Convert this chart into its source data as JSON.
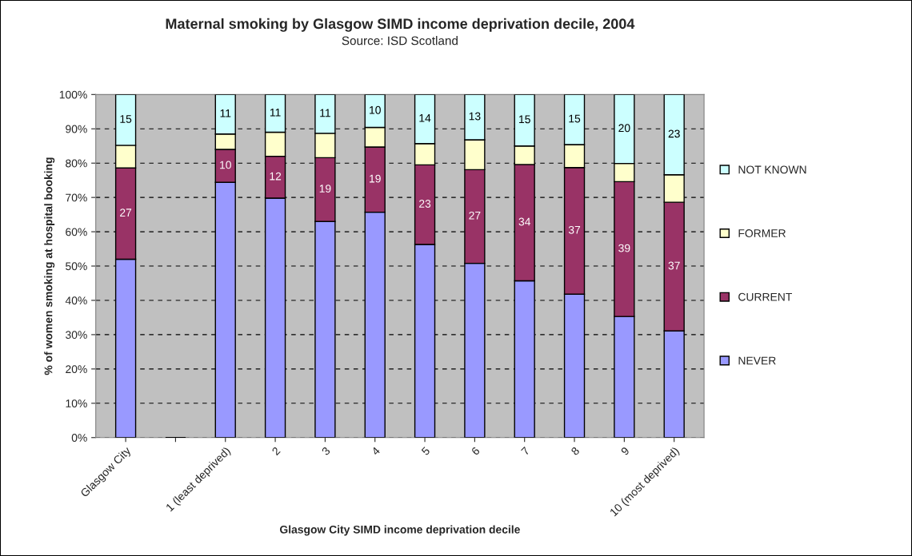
{
  "chart_data": {
    "type": "bar",
    "stacked": true,
    "title": "Maternal smoking by Glasgow SIMD income deprivation decile, 2004",
    "subtitle": "Source: ISD Scotland",
    "xlabel": "Glasgow City SIMD income deprivation decile",
    "ylabel": "% of women smoking at hospital booking",
    "categories": [
      "Glasgow City",
      null,
      "1 (least deprived)",
      "2",
      "3",
      "4",
      "5",
      "6",
      "7",
      "8",
      "9",
      "10 (most deprived)"
    ],
    "series": [
      {
        "name": "NEVER",
        "color": "#9999ff",
        "values": [
          52.0,
          null,
          74.4,
          69.8,
          63.0,
          65.7,
          56.3,
          50.8,
          45.7,
          41.8,
          35.3,
          31.1
        ]
      },
      {
        "name": "CURRENT",
        "color": "#993366",
        "values": [
          26.6,
          null,
          9.6,
          12.2,
          18.6,
          19.0,
          23.2,
          27.3,
          33.9,
          36.9,
          39.3,
          37.5
        ],
        "value_labels": [
          "27",
          null,
          "10",
          "12",
          "19",
          "19",
          "23",
          "27",
          "34",
          "37",
          "39",
          "37"
        ]
      },
      {
        "name": "FORMER",
        "color": "#ffffcc",
        "values": [
          6.6,
          null,
          4.5,
          7.0,
          7.1,
          5.7,
          6.2,
          8.7,
          5.4,
          6.7,
          5.3,
          8.0
        ]
      },
      {
        "name": "NOT KNOWN",
        "color": "#ccffff",
        "values": [
          14.8,
          null,
          11.5,
          11.0,
          11.3,
          9.6,
          14.3,
          13.2,
          15.0,
          14.6,
          20.1,
          23.4
        ],
        "value_labels": [
          "15",
          null,
          "11",
          "11",
          "11",
          "10",
          "14",
          "13",
          "15",
          "15",
          "20",
          "23"
        ]
      }
    ],
    "ylim": [
      0,
      100
    ],
    "yticks": [
      {
        "value": 0,
        "label": "0%"
      },
      {
        "value": 10,
        "label": "10%"
      },
      {
        "value": 20,
        "label": "20%"
      },
      {
        "value": 30,
        "label": "30%"
      },
      {
        "value": 40,
        "label": "40%"
      },
      {
        "value": 50,
        "label": "50%"
      },
      {
        "value": 60,
        "label": "60%"
      },
      {
        "value": 70,
        "label": "70%"
      },
      {
        "value": 80,
        "label": "80%"
      },
      {
        "value": 90,
        "label": "90%"
      },
      {
        "value": 100,
        "label": "100%"
      }
    ],
    "grid": "y",
    "legend": "right"
  }
}
